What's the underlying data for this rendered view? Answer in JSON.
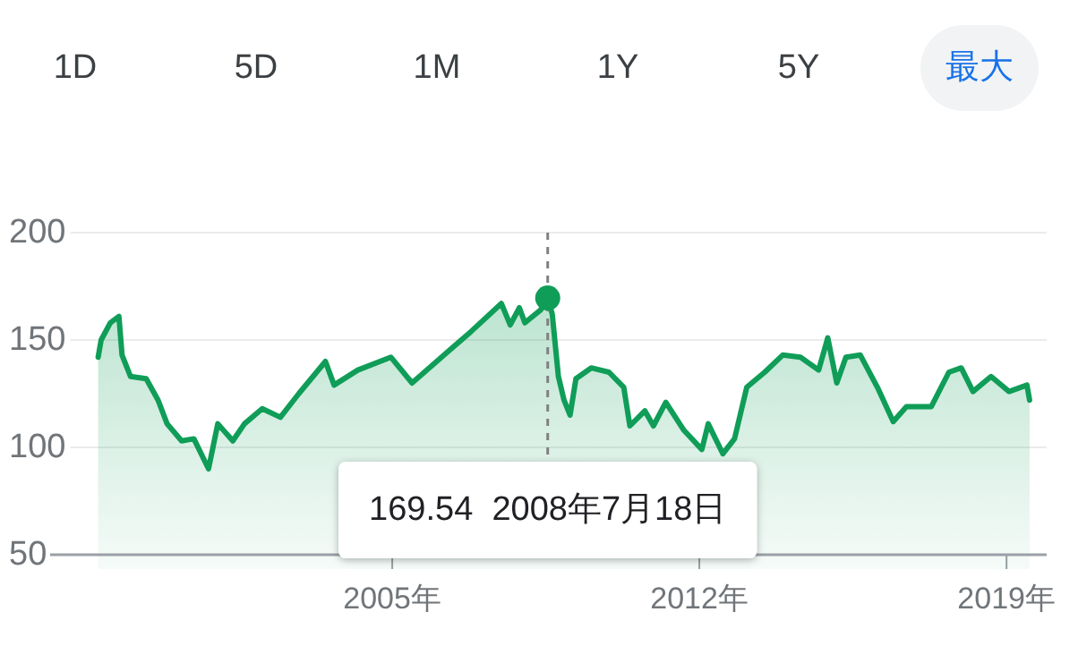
{
  "chart_data": {
    "type": "area",
    "color": "#0f9d58",
    "x": [
      "1998-04-20",
      "1998-05-15",
      "1998-07-30",
      "1998-10-10",
      "1998-11-05",
      "1999-01-15",
      "1999-05-25",
      "1999-09-01",
      "1999-11-15",
      "2000-03-15",
      "2000-06-25",
      "2000-10-25",
      "2001-01-10",
      "2001-05-15",
      "2001-08-20",
      "2002-01-15",
      "2002-06-15",
      "2002-11-15",
      "2003-06-25",
      "2003-09-05",
      "2004-03-20",
      "2004-12-20",
      "2005-06-15",
      "2006-02-15",
      "2006-10-20",
      "2007-06-28",
      "2007-09-10",
      "2007-11-25",
      "2008-01-10",
      "2008-05-20",
      "2008-07-18",
      "2008-08-25",
      "2008-10-15",
      "2008-12-01",
      "2009-01-20",
      "2009-03-10",
      "2009-07-15",
      "2009-12-10",
      "2010-04-12",
      "2010-06-02",
      "2010-10-05",
      "2010-12-15",
      "2011-03-28",
      "2011-08-25",
      "2012-01-22",
      "2012-03-15",
      "2012-07-15",
      "2012-10-20",
      "2013-01-30",
      "2013-06-28",
      "2013-11-25",
      "2014-04-22",
      "2014-09-20",
      "2014-12-05",
      "2015-02-18",
      "2015-05-05",
      "2015-09-02",
      "2016-01-22",
      "2016-06-02",
      "2016-09-20",
      "2017-04-15",
      "2017-09-08",
      "2017-12-20",
      "2018-03-28",
      "2018-08-25",
      "2019-01-22",
      "2019-06-20",
      "2019-07-12"
    ],
    "values": [
      142,
      150,
      158,
      161,
      143,
      133,
      132,
      122,
      111,
      103,
      104,
      90,
      111,
      103,
      111,
      118,
      114,
      125,
      140,
      129,
      136,
      142,
      130,
      142,
      154,
      167,
      157,
      165,
      158,
      164,
      169.54,
      162,
      133,
      122,
      115,
      132,
      137,
      135,
      128,
      110,
      117,
      110,
      121,
      108,
      99,
      111,
      97,
      104,
      128,
      135,
      143,
      142,
      136,
      151,
      130,
      142,
      143,
      128,
      112,
      119,
      119,
      135,
      137,
      126,
      133,
      126,
      129,
      122
    ],
    "xlim": [
      "1997-09-01",
      "2019-12-01"
    ],
    "ylim": [
      50,
      200
    ],
    "yticks": [
      50,
      100,
      150,
      200
    ],
    "xticks": [
      {
        "value": "2005-01-01",
        "label": "2005年"
      },
      {
        "value": "2012-01-01",
        "label": "2012年"
      },
      {
        "value": "2019-01-01",
        "label": "2019年"
      }
    ],
    "grid": "y",
    "ref_lines": [
      {
        "axis": "x",
        "value": "2008-07-18",
        "color": "#808080",
        "line_style": "dashed",
        "label": "169.54  2008年7月18日"
      }
    ],
    "annotations": [
      "1D",
      "5D",
      "1M",
      "1Y",
      "5Y",
      "最大"
    ]
  }
}
